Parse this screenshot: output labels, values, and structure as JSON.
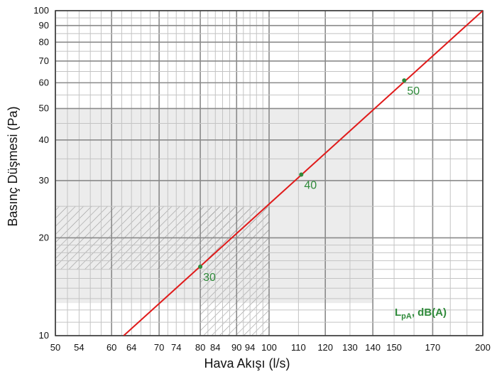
{
  "chart_data": {
    "type": "line",
    "xlabel": "Hava Akışı (l/s)",
    "ylabel": "Basınç Düşmesi (Pa)",
    "x_scale": "log",
    "y_scale": "log",
    "xlim": [
      50,
      200
    ],
    "ylim": [
      10,
      100
    ],
    "x_tick_labels": [
      50,
      54,
      60,
      64,
      70,
      74,
      80,
      84,
      90,
      94,
      100,
      110,
      120,
      130,
      140,
      150,
      170,
      200
    ],
    "y_tick_labels": [
      10,
      20,
      30,
      40,
      50,
      60,
      70,
      80,
      90,
      100
    ],
    "grid": true,
    "series": [
      {
        "color": "#e01b1b",
        "x": [
          62.4,
          200
        ],
        "y": [
          10,
          100
        ]
      }
    ],
    "points": [
      {
        "label": "30",
        "x": 80,
        "y": 16.3
      },
      {
        "label": "40",
        "x": 111,
        "y": 31.3
      },
      {
        "label": "50",
        "x": 155,
        "y": 61
      }
    ],
    "point_color": "#2f8a3a",
    "legend_main": "L",
    "legend_sub": "pA",
    "legend_rest": ", dB(A)",
    "legend_position": "bottom-right",
    "regions": [
      {
        "type": "shaded",
        "x": [
          50,
          140
        ],
        "y": [
          12.6,
          50
        ]
      },
      {
        "type": "hatched",
        "x": [
          50,
          100
        ],
        "y": [
          16,
          25
        ]
      },
      {
        "type": "hatched",
        "x": [
          80,
          100
        ],
        "y": [
          10,
          25
        ]
      }
    ]
  }
}
